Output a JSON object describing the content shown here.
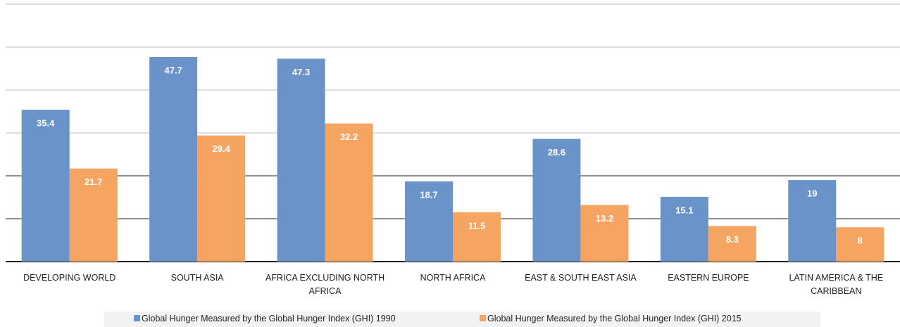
{
  "chart_data": {
    "type": "bar",
    "categories": [
      "DEVELOPING WORLD",
      "SOUTH ASIA",
      "AFRICA EXCLUDING NORTH AFRICA",
      "NORTH AFRICA",
      "EAST & SOUTH EAST ASIA",
      "EASTERN EUROPE",
      "LATIN AMERICA & THE CARIBBEAN"
    ],
    "series": [
      {
        "name": "Global Hunger Measured by the Global Hunger Index (GHI) 1990",
        "color": "#6a93c9",
        "values": [
          35.4,
          47.7,
          47.3,
          18.7,
          28.6,
          15.1,
          19
        ]
      },
      {
        "name": "Global Hunger Measured by the Global Hunger Index (GHI) 2015",
        "color": "#f6a461",
        "values": [
          21.7,
          29.4,
          32.2,
          11.5,
          13.2,
          8.3,
          8
        ]
      }
    ],
    "ylim": [
      0,
      60
    ],
    "yticks": [
      0,
      10,
      20,
      30,
      40,
      50,
      60
    ],
    "grid": true,
    "legend": "bottom"
  }
}
